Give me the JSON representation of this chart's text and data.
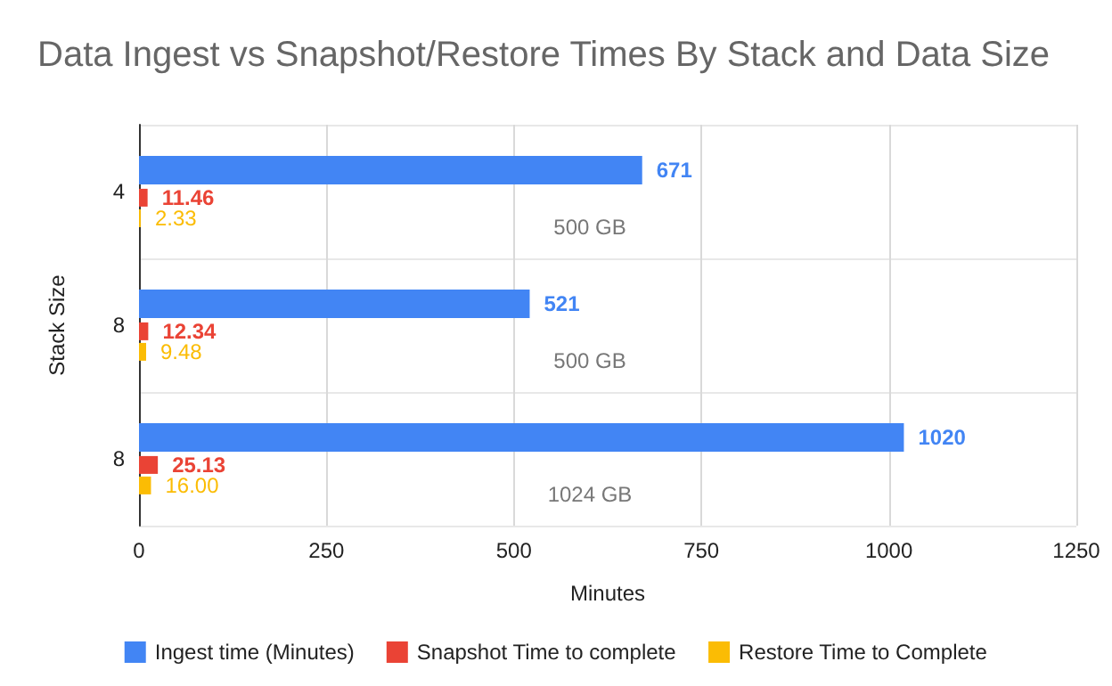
{
  "chart_data": {
    "type": "bar",
    "orientation": "horizontal",
    "title": "Data Ingest vs Snapshot/Restore Times By Stack and Data Size",
    "xlabel": "Minutes",
    "ylabel": "Stack Size",
    "categories": [
      "4",
      "8",
      "8"
    ],
    "series": [
      {
        "name": "Ingest time (Minutes)",
        "color": "#4285f4",
        "values": [
          671,
          521,
          1020
        ],
        "value_labels": [
          "671",
          "521",
          "1020"
        ]
      },
      {
        "name": "Snapshot Time to complete",
        "color": "#ea4335",
        "values": [
          11.46,
          12.34,
          25.13
        ],
        "value_labels": [
          "11.46",
          "12.34",
          "25.13"
        ]
      },
      {
        "name": "Restore Time to Complete",
        "color": "#fbbc04",
        "values": [
          2.33,
          9.48,
          16
        ],
        "value_labels": [
          "2.33",
          "9.48",
          "16.00"
        ]
      }
    ],
    "annotations": [
      "500 GB",
      "500 GB",
      "1024 GB"
    ],
    "xlim": [
      0,
      1250
    ],
    "xticks": [
      0,
      250,
      500,
      750,
      1000,
      1250
    ],
    "grid": true,
    "legend": "bottom"
  }
}
